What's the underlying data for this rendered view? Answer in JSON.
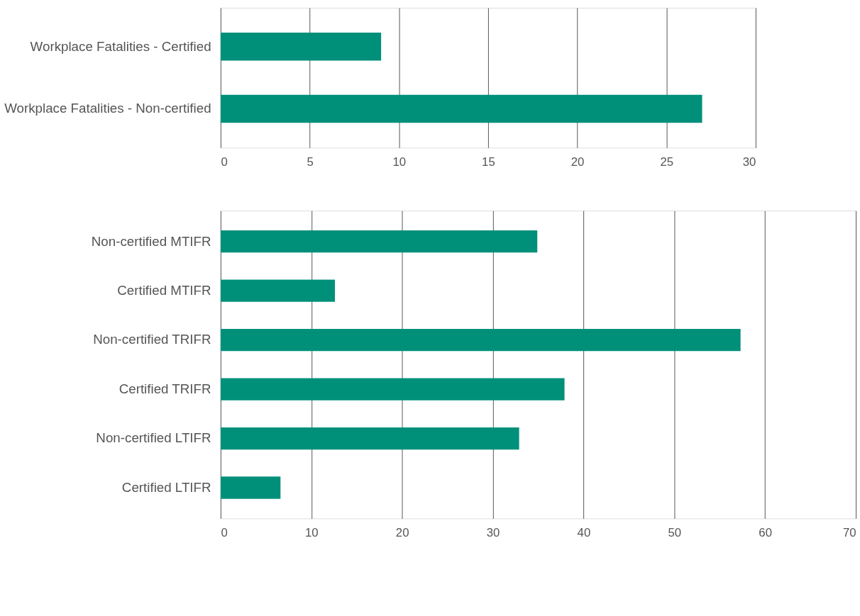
{
  "chart_data": [
    {
      "type": "bar",
      "orientation": "horizontal",
      "categories": [
        "Workplace Fatalities - Certified",
        "Workplace Fatalities - Non-certified"
      ],
      "values": [
        9,
        27
      ],
      "color": "#00907a",
      "xlim": [
        0,
        30
      ],
      "xticks": [
        0,
        5,
        10,
        15,
        20,
        25,
        30
      ],
      "grid": "x"
    },
    {
      "type": "bar",
      "orientation": "horizontal",
      "categories": [
        "Non-certified MTIFR",
        "Certified MTIFR",
        "Non-certified TRIFR",
        "Certified TRIFR",
        "Non-certified LTIFR",
        "Certified LTIFR"
      ],
      "values": [
        34.9,
        12.6,
        57.3,
        37.9,
        32.9,
        6.6
      ],
      "color": "#00907a",
      "xlim": [
        0,
        70
      ],
      "xticks": [
        0,
        10,
        20,
        30,
        40,
        50,
        60,
        70
      ],
      "grid": "x"
    }
  ]
}
